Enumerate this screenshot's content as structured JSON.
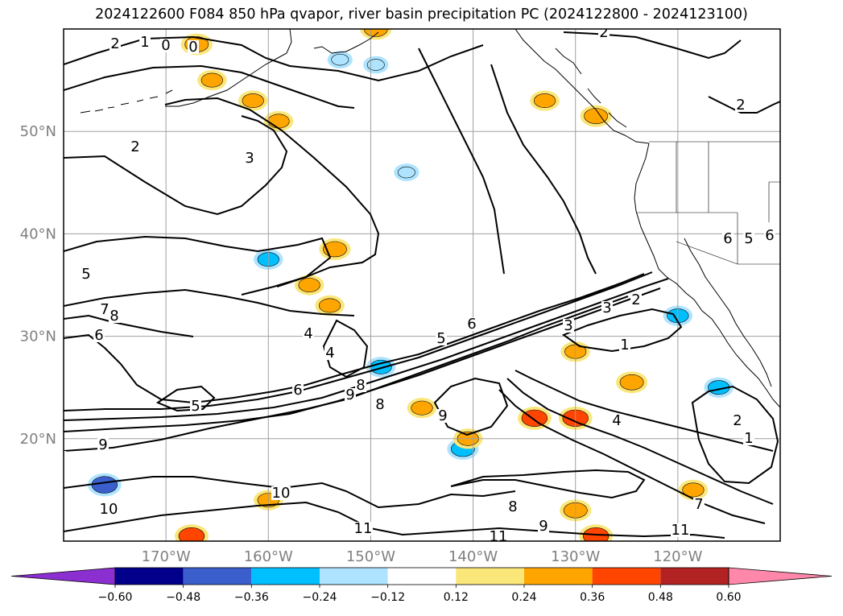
{
  "title": "2024122600 F084 850 hPa qvapor, river basin precipitation PC (2024122800 - 2024123100)",
  "colors": {
    "frame": "#000000",
    "grid": "#a0a0a0",
    "coast": "#000000",
    "tick_label": "#808080",
    "contour": "#000000"
  },
  "lat_labels": [
    "50°N",
    "40°N",
    "30°N",
    "20°N"
  ],
  "lon_labels": [
    "170°W",
    "160°W",
    "150°W",
    "140°W",
    "130°W",
    "120°W"
  ],
  "contour_labels": [
    "2",
    "1",
    "0",
    "0",
    "2",
    "2",
    "2",
    "3",
    "5",
    "7",
    "8",
    "6",
    "4",
    "4",
    "5",
    "6",
    "9",
    "8",
    "8",
    "9",
    "9",
    "5",
    "6",
    "3",
    "2",
    "3",
    "1",
    "4",
    "2",
    "1",
    "6",
    "5",
    "6",
    "8",
    "9",
    "10",
    "10",
    "11",
    "11",
    "11",
    "7",
    "3"
  ],
  "colorbar": {
    "colors": [
      "#8b2fd1",
      "#00008b",
      "#3a5fcd",
      "#00bfff",
      "#aee4ff",
      "#ffffff",
      "#fbe67a",
      "#ffa500",
      "#ff4500",
      "#b22222",
      "#ff88aa"
    ],
    "tick_labels": [
      "−0.60",
      "−0.48",
      "−0.36",
      "−0.24",
      "−0.12",
      "0.12",
      "0.24",
      "0.36",
      "0.48",
      "0.60"
    ],
    "extend": "both"
  },
  "precip_patches": [
    {
      "lon": -167,
      "lat": 58.5,
      "value": 0.3
    },
    {
      "lon": -165.5,
      "lat": 55,
      "value": 0.24
    },
    {
      "lon": -159,
      "lat": 51,
      "value": 0.24
    },
    {
      "lon": -161.5,
      "lat": 53,
      "value": 0.24
    },
    {
      "lon": -153.5,
      "lat": 38.5,
      "value": 0.3
    },
    {
      "lon": -156,
      "lat": 35,
      "value": 0.24
    },
    {
      "lon": -160,
      "lat": 37.5,
      "value": -0.24
    },
    {
      "lon": -149.5,
      "lat": 60,
      "value": 0.3
    },
    {
      "lon": -149,
      "lat": 27,
      "value": -0.24
    },
    {
      "lon": -145,
      "lat": 23,
      "value": 0.24
    },
    {
      "lon": -141,
      "lat": 19,
      "value": -0.3
    },
    {
      "lon": -134,
      "lat": 22,
      "value": 0.36
    },
    {
      "lon": -130,
      "lat": 22,
      "value": 0.36
    },
    {
      "lon": -130,
      "lat": 28.5,
      "value": 0.24
    },
    {
      "lon": -124.5,
      "lat": 25.5,
      "value": 0.3
    },
    {
      "lon": -133,
      "lat": 53,
      "value": 0.24
    },
    {
      "lon": -128,
      "lat": 51.5,
      "value": 0.3
    },
    {
      "lon": -120,
      "lat": 32,
      "value": -0.24
    },
    {
      "lon": -116,
      "lat": 25,
      "value": -0.24
    },
    {
      "lon": -176,
      "lat": 15.5,
      "value": -0.36
    },
    {
      "lon": -167.5,
      "lat": 10.5,
      "value": 0.36
    },
    {
      "lon": -130,
      "lat": 13,
      "value": 0.3
    },
    {
      "lon": -128,
      "lat": 10.5,
      "value": 0.36
    },
    {
      "lon": -153,
      "lat": 57,
      "value": -0.12
    },
    {
      "lon": -149.5,
      "lat": 56.5,
      "value": -0.12
    },
    {
      "lon": -146.5,
      "lat": 46,
      "value": -0.12
    },
    {
      "lon": -160,
      "lat": 14,
      "value": 0.24
    },
    {
      "lon": -140.5,
      "lat": 20,
      "value": 0.24
    },
    {
      "lon": -154,
      "lat": 33,
      "value": 0.24
    },
    {
      "lon": -118.5,
      "lat": 15,
      "value": 0.24
    }
  ]
}
